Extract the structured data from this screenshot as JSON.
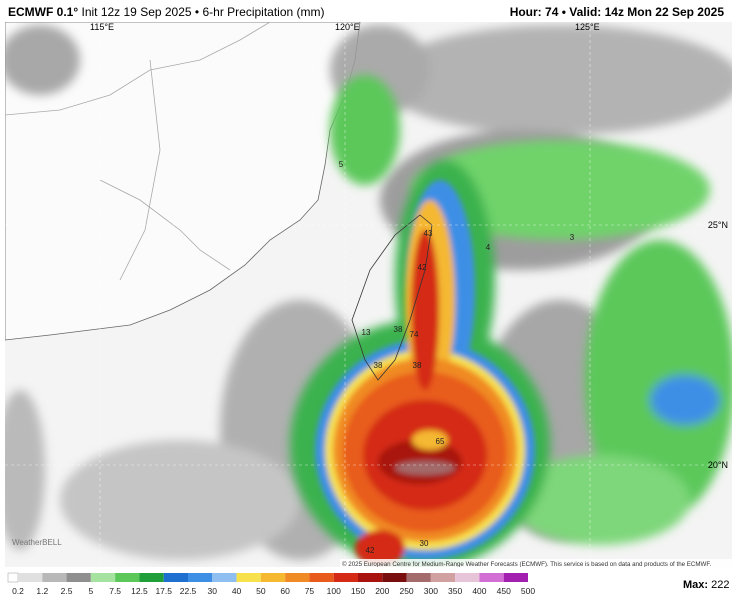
{
  "header": {
    "model": "ECMWF 0.1°",
    "init": "Init 12z 19 Sep 2025",
    "separator": "•",
    "product": "6-hr Precipitation (mm)",
    "hour": "Hour: 74",
    "valid": "Valid: 14z Mon 22 Sep 2025"
  },
  "map": {
    "lon_labels": [
      "115°E",
      "120°E",
      "125°E"
    ],
    "lat_labels": [
      "25°N",
      "20°N"
    ],
    "point_values": [
      5,
      4,
      3,
      43,
      42,
      13,
      38,
      74,
      38,
      38,
      65,
      42,
      30
    ],
    "copyright": "© 2025 European Centre for Medium-Range Weather Forecasts (ECMWF). This service is based on data and products of the ECMWF.",
    "logo": "WeatherBELL"
  },
  "colorbar": {
    "ticks": [
      0.2,
      1.2,
      2.5,
      5,
      7.5,
      12.5,
      17.5,
      22.5,
      30,
      40,
      50,
      60,
      75,
      100,
      150,
      200,
      250,
      300,
      350,
      400,
      450,
      500
    ],
    "colors": [
      "#e0e0e0",
      "#b8b8b8",
      "#8f8f8f",
      "#a6e3a0",
      "#5cc85a",
      "#1f9e3a",
      "#1f6fd1",
      "#3d8fe6",
      "#8fbff0",
      "#f7e14d",
      "#f5b830",
      "#f08a24",
      "#e85b1c",
      "#d42a16",
      "#a8120f",
      "#7a0d0d",
      "#a36b6b",
      "#d1a0a0",
      "#e8c4d8",
      "#d36fd4",
      "#a21fb0"
    ]
  },
  "max": {
    "label": "Max:",
    "value": 222
  }
}
